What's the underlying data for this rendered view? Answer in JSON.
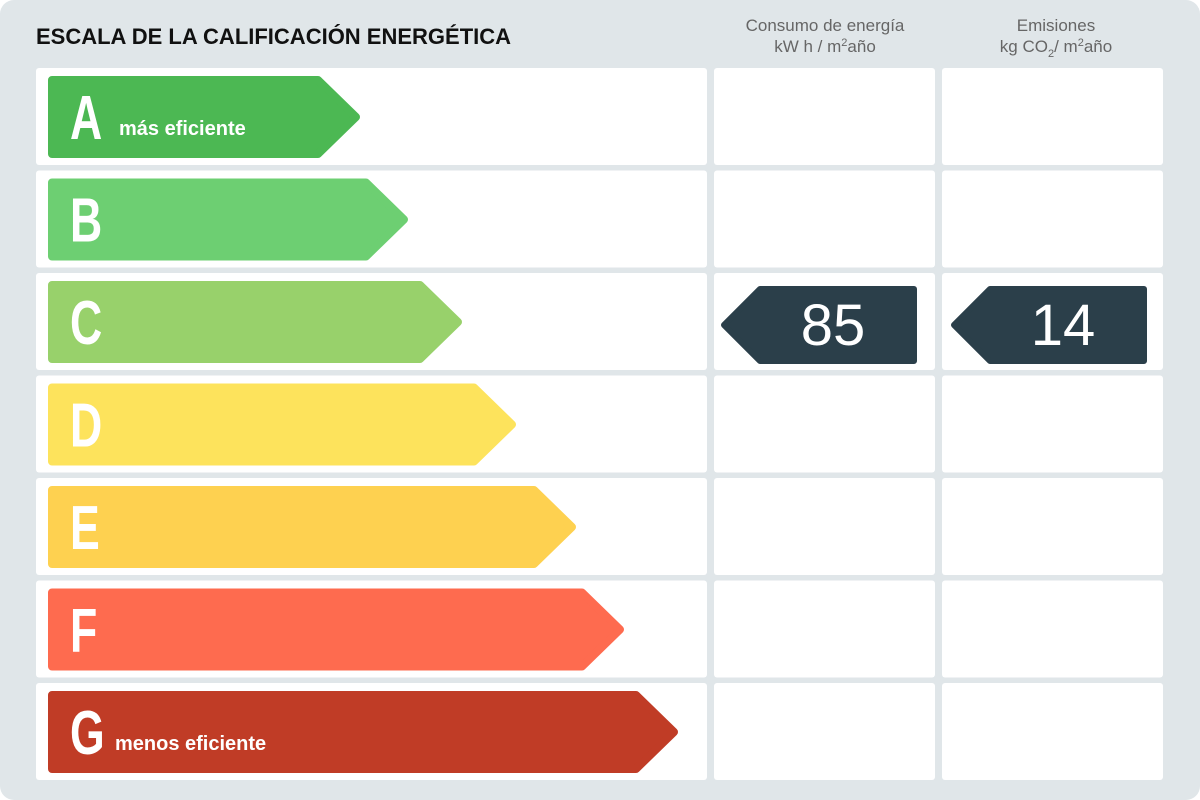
{
  "title": "ESCALA DE LA CALIFICACIÓN ENERGÉTICA",
  "columns": [
    {
      "title": "Consumo de energía",
      "unit": [
        "kW h / m",
        "2",
        "año"
      ]
    },
    {
      "title": "Emisiones",
      "unit": [
        "kg CO",
        "2",
        "/ m",
        "2",
        "año"
      ]
    }
  ],
  "grades": [
    {
      "letter": "A",
      "note": "más eficiente",
      "color": "#4cb853"
    },
    {
      "letter": "B",
      "color": "#6dcf72"
    },
    {
      "letter": "C",
      "color": "#98d16b"
    },
    {
      "letter": "D",
      "color": "#fde35c"
    },
    {
      "letter": "E",
      "color": "#fed150"
    },
    {
      "letter": "F",
      "color": "#fe6b4f"
    },
    {
      "letter": "G",
      "note": "menos eficiente",
      "color": "#c03c26"
    }
  ],
  "rating": {
    "grade": "C",
    "consumption": "85",
    "emissions": "14",
    "color": "#2b3f4a"
  }
}
